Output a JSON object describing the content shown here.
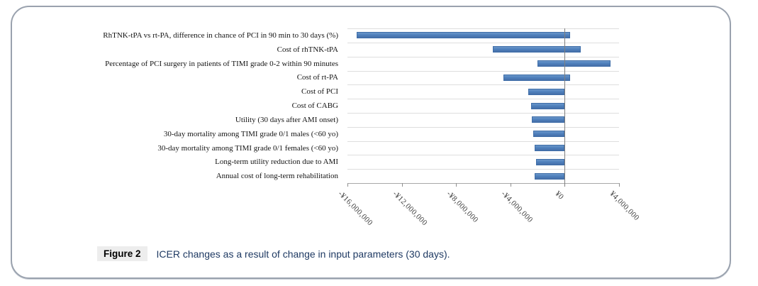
{
  "caption": {
    "label": "Figure 2",
    "text": "ICER changes as a result of change in input parameters (30 days)."
  },
  "chart_data": {
    "type": "bar",
    "subtype": "tornado",
    "orientation": "horizontal",
    "title": "",
    "xlabel": "",
    "ylabel": "",
    "grid": true,
    "legend": false,
    "currency": "JPY",
    "categories": [
      "RhTNK-tPA vs rt-PA, difference in chance of PCI in 90 min to 30 days (%)",
      "Cost of rhTNK-tPA",
      "Percentage of PCI surgery in patients of TIMI grade 0-2 within 90 minutes",
      "Cost of rt-PA",
      "Cost of PCI",
      "Cost of CABG",
      "Utility (30 days after AMI onset)",
      "30-day mortality among TIMI grade 0/1 males (<60 yo)",
      "30-day mortality among TIMI grade 0/1 females (<60 yo)",
      "Long-term utility reduction due to AMI",
      "Annual cost of long-term rehabilitation"
    ],
    "series": [
      {
        "name": "ICER change (¥)",
        "ranges": [
          [
            -15300000,
            400000
          ],
          [
            -5300000,
            1200000
          ],
          [
            -2000000,
            3400000
          ],
          [
            -4500000,
            400000
          ],
          [
            -2700000,
            0
          ],
          [
            -2500000,
            0
          ],
          [
            -2400000,
            0
          ],
          [
            -2300000,
            0
          ],
          [
            -2200000,
            0
          ],
          [
            -2100000,
            0
          ],
          [
            -2200000,
            0
          ]
        ]
      }
    ],
    "baseline": 0,
    "xlim": [
      -16000000,
      4000000
    ],
    "ticks": [
      -16000000,
      -12000000,
      -8000000,
      -4000000,
      0,
      4000000
    ],
    "tick_labels": [
      "-¥16,000,000",
      "-¥12,000,000",
      "-¥8,000,000",
      "-¥4,000,000",
      "¥0",
      "¥4,000,000"
    ],
    "bar_color": "#4f81bd",
    "bar_border_color": "#3e6da8",
    "gridline_color": "#dedede",
    "axis_color": "#a8a8a8",
    "zero_line_color": "#7f7f7f",
    "caption_text_color": "#1f3a63"
  }
}
